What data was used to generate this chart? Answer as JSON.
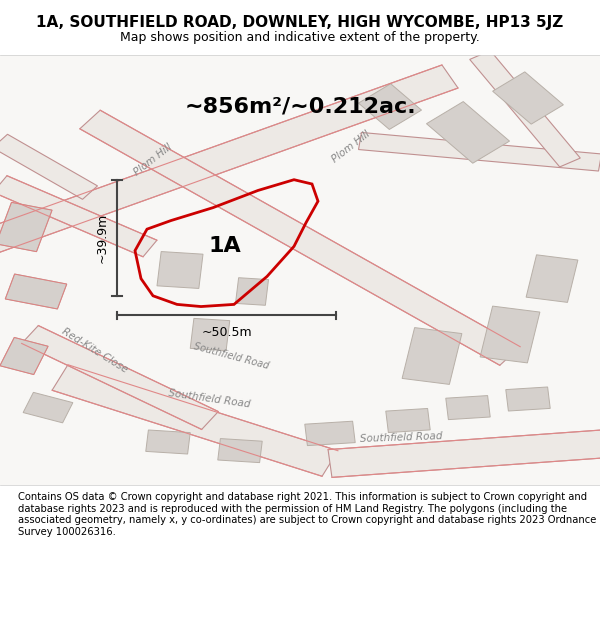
{
  "title": "1A, SOUTHFIELD ROAD, DOWNLEY, HIGH WYCOMBE, HP13 5JZ",
  "subtitle": "Map shows position and indicative extent of the property.",
  "area_label": "~856m²/~0.212ac.",
  "property_label": "1A",
  "dim_vertical": "~39.9m",
  "dim_horizontal": "~50.5m",
  "footer": "Contains OS data © Crown copyright and database right 2021. This information is subject to Crown copyright and database rights 2023 and is reproduced with the permission of HM Land Registry. The polygons (including the associated geometry, namely x, y co-ordinates) are subject to Crown copyright and database rights 2023 Ordnance Survey 100026316.",
  "map_bg": "#f5f5f5",
  "road_color": "#f08080",
  "building_color": "#d0d0d0",
  "road_outline_color": "#c08080"
}
